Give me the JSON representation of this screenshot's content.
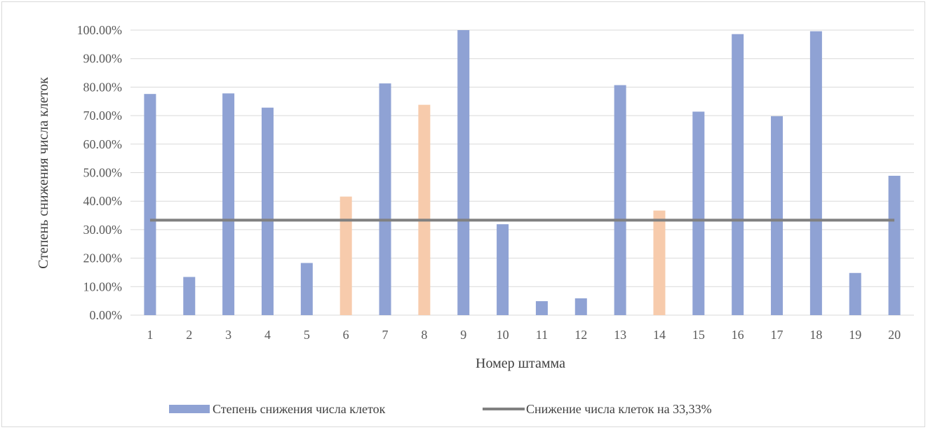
{
  "chart_data": {
    "type": "bar",
    "categories": [
      "1",
      "2",
      "3",
      "4",
      "5",
      "6",
      "7",
      "8",
      "9",
      "10",
      "11",
      "12",
      "13",
      "14",
      "15",
      "16",
      "17",
      "18",
      "19",
      "20"
    ],
    "series": [
      {
        "name": "Степень снижения числа клеток",
        "type": "bar",
        "values": [
          0.776,
          0.134,
          0.778,
          0.728,
          0.183,
          0.416,
          0.813,
          0.738,
          1.0,
          0.319,
          0.049,
          0.059,
          0.807,
          0.367,
          0.714,
          0.986,
          0.698,
          0.996,
          0.148,
          0.489
        ],
        "highlight_indices": [
          5,
          7,
          13
        ],
        "color": "#8fa2d4",
        "highlight_color": "#f7cbac"
      },
      {
        "name": "Снижение числа клеток на 33,33%",
        "type": "line",
        "values": [
          0.3333,
          0.3333,
          0.3333,
          0.3333,
          0.3333,
          0.3333,
          0.3333,
          0.3333,
          0.3333,
          0.3333,
          0.3333,
          0.3333,
          0.3333,
          0.3333,
          0.3333,
          0.3333,
          0.3333,
          0.3333,
          0.3333,
          0.3333
        ],
        "color": "#808080"
      }
    ],
    "title": "",
    "xlabel": "Номер штамма",
    "ylabel": "Степень снижения числа клеток",
    "ylim": [
      0,
      1
    ],
    "yticks": [
      "0.00%",
      "10.00%",
      "20.00%",
      "30.00%",
      "40.00%",
      "50.00%",
      "60.00%",
      "70.00%",
      "80.00%",
      "90.00%",
      "100.00%"
    ],
    "grid": true,
    "legend_position": "bottom"
  }
}
